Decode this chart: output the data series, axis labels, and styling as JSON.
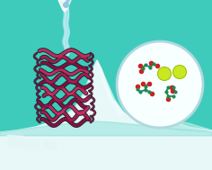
{
  "bg_color": "#3ecbbb",
  "water_color_bottom": "#5ed4c8",
  "water_color_reflect": "#80ddd6",
  "ice_main": "#e8f8f8",
  "ice_shadow_left": "#c0e8e5",
  "ice_highlight": "#f5fefe",
  "ice_water_surface": "#70d0c8",
  "circle_bg": "#f8ffff",
  "circle_edge": "#b0d8e0",
  "arrow_color": "#90c8e0",
  "protein_outline": "#1a1020",
  "protein_helix_dark": "#8b1040",
  "protein_helix_mid": "#aa2050",
  "protein_helix_light": "#cc3060",
  "water_stream": "#c8eef8",
  "ice_cube": "#d8f0f0",
  "mol_stick": "#208858",
  "mol_stick2": "#30a870",
  "mol_o": "#cc2222",
  "mol_c": "#208858",
  "ion_fill": "#c8e820",
  "ion_edge": "#a0c010",
  "figsize": [
    2.36,
    1.89
  ],
  "dpi": 100
}
